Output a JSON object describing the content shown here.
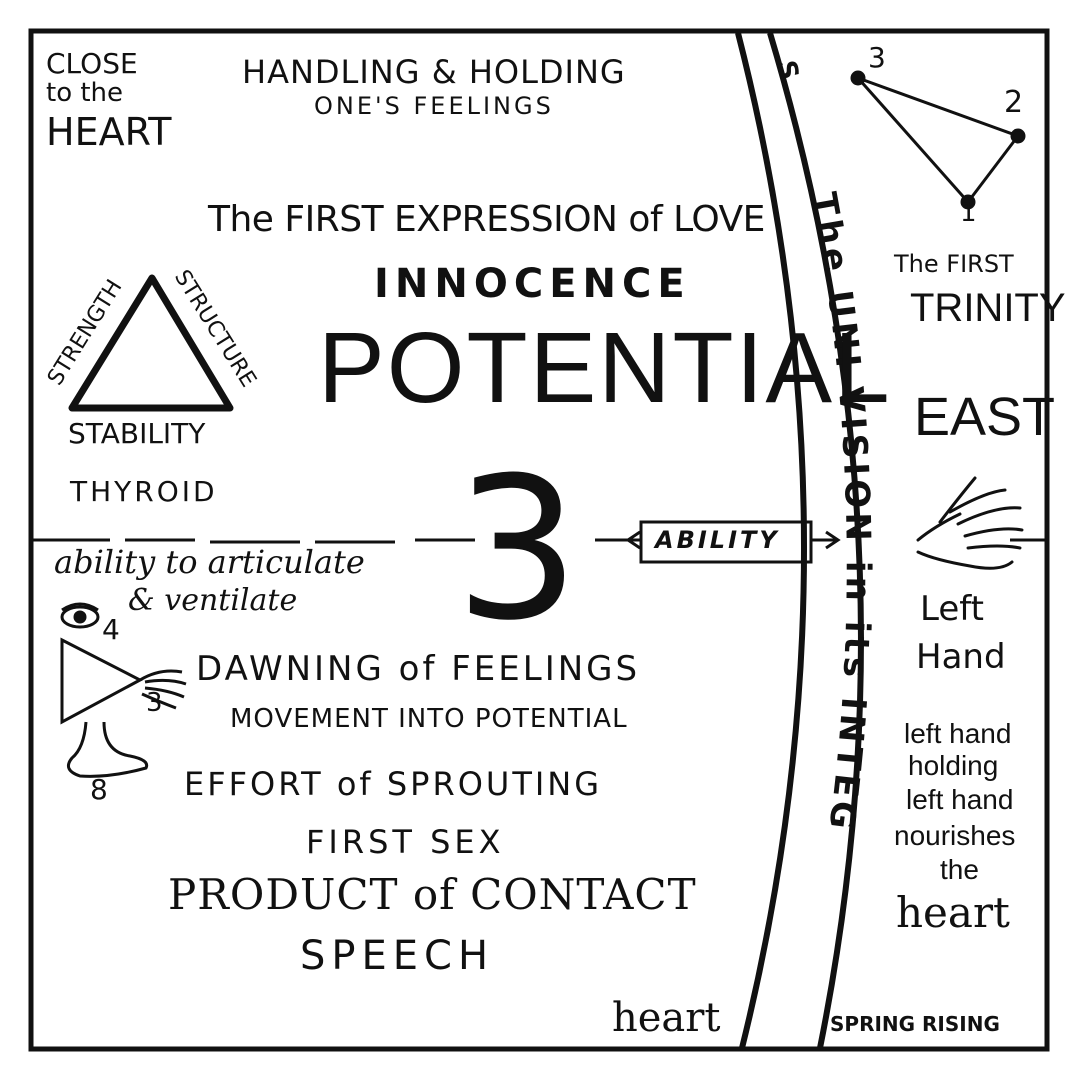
{
  "corner": {
    "line1": "CLOSE",
    "line2": "to the",
    "line3": "HEART"
  },
  "header": {
    "line1": "HANDLING & HOLDING",
    "line2": "ONE'S FEELINGS"
  },
  "main": {
    "expression": "The FIRST EXPRESSION of LOVE",
    "innocence": "INNOCENCE",
    "potential": "POTENTIAL",
    "number": "3",
    "ability": "ABILITY",
    "articulate_line1": "ability to articulate",
    "articulate_line2": "& ventilate",
    "dawning": "DAWNING of FEELINGS",
    "movement": "MOVEMENT INTO POTENTIAL",
    "effort": "EFFORT of SPROUTING",
    "first_sex": "FIRST SEX",
    "product": "PRODUCT of CONTACT",
    "speech": "SPEECH",
    "heart_bottom": "heart"
  },
  "triangle": {
    "left": "STRENGTH",
    "right": "STRUCTURE",
    "bottom": "STABILITY",
    "gland": "THYROID"
  },
  "small_figure": {
    "label_4": "4",
    "label_3": "3",
    "label_8": "8"
  },
  "arc": {
    "text": "The UNI-VISION in its INTEG",
    "top_fragment": "S."
  },
  "right_panel": {
    "vertex_3": "3",
    "vertex_2": "2",
    "vertex_1": "1",
    "first_trinity_line1": "The FIRST",
    "first_trinity_line2": "TRINITY",
    "east": "EAST",
    "left_hand_line1": "Left",
    "left_hand_line2": "Hand",
    "holding_line1": "left hand",
    "holding_line2": "holding",
    "holding_line3": "left hand",
    "holding_line4": "nourishes",
    "holding_line5": "the",
    "holding_line6": "heart",
    "spring": "SPRING RISING"
  },
  "icons": {
    "eye": "eye-icon",
    "hand": "hand-icon",
    "foot": "foot-icon"
  },
  "colors": {
    "ink": "#111111",
    "paper": "#ffffff"
  }
}
